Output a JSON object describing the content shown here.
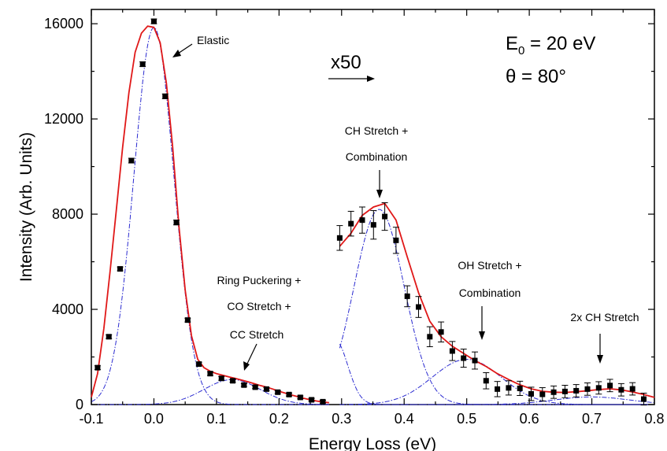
{
  "chart_data": {
    "type": "scatter",
    "xlabel": "Energy Loss (eV)",
    "ylabel": "Intensity (Arb. Units)",
    "xlim": [
      -0.1,
      0.8
    ],
    "ylim": [
      0,
      16600
    ],
    "x_ticks": [
      -0.1,
      0.0,
      0.1,
      0.2,
      0.3,
      0.4,
      0.5,
      0.6,
      0.7,
      0.8
    ],
    "x_tick_labels": [
      "-0.1",
      "0.0",
      "0.1",
      "0.2",
      "0.3",
      "0.4",
      "0.5",
      "0.6",
      "0.7",
      "0.8"
    ],
    "y_ticks": [
      0,
      4000,
      8000,
      12000,
      16000
    ],
    "y_tick_labels": [
      "0",
      "4000",
      "8000",
      "12000",
      "16000"
    ],
    "grid": false,
    "conditions": {
      "energy_main": "E",
      "energy_sub": "0",
      "energy_value": " = 20 eV",
      "angle": "θ = 80°"
    },
    "scale_marker": "x50",
    "annotations": [
      {
        "lines": [
          "Elastic"
        ]
      },
      {
        "lines": [
          "Ring Puckering +",
          "CO Stretch +",
          "CC Stretch"
        ]
      },
      {
        "lines": [
          "CH Stretch +",
          "Combination"
        ]
      },
      {
        "lines": [
          "OH Stretch +",
          "Combination"
        ]
      },
      {
        "lines": [
          "2x CH Stretch"
        ]
      }
    ],
    "measured": {
      "x": [
        -0.09,
        -0.072,
        -0.054,
        -0.036,
        -0.018,
        0.0,
        0.018,
        0.036,
        0.054,
        0.072,
        0.09,
        0.108,
        0.126,
        0.144,
        0.162,
        0.18,
        0.198,
        0.216,
        0.234,
        0.252,
        0.27,
        0.297,
        0.315,
        0.333,
        0.351,
        0.369,
        0.387,
        0.405,
        0.423,
        0.441,
        0.459,
        0.477,
        0.495,
        0.513,
        0.531,
        0.549,
        0.567,
        0.585,
        0.603,
        0.621,
        0.639,
        0.657,
        0.675,
        0.693,
        0.711,
        0.729,
        0.747,
        0.765,
        0.783
      ],
      "y": [
        1550,
        2850,
        5700,
        10250,
        14300,
        16100,
        12950,
        7650,
        3550,
        1700,
        1300,
        1100,
        1000,
        820,
        730,
        650,
        520,
        420,
        300,
        200,
        120,
        7000,
        7600,
        7750,
        7550,
        7900,
        6900,
        4550,
        4100,
        2850,
        3050,
        2250,
        1950,
        1850,
        1000,
        650,
        700,
        680,
        450,
        430,
        520,
        550,
        580,
        650,
        700,
        800,
        620,
        660,
        230
      ],
      "err": [
        80,
        80,
        80,
        100,
        100,
        100,
        100,
        100,
        80,
        80,
        80,
        80,
        60,
        60,
        60,
        60,
        60,
        60,
        60,
        60,
        60,
        520,
        520,
        550,
        600,
        580,
        550,
        440,
        440,
        420,
        420,
        400,
        380,
        360,
        340,
        320,
        300,
        300,
        280,
        280,
        260,
        260,
        260,
        260,
        260,
        260,
        260,
        260,
        250
      ]
    },
    "series": [
      {
        "name": "",
        "style": "red-solid",
        "x": [
          -0.1,
          -0.09,
          -0.08,
          -0.07,
          -0.06,
          -0.05,
          -0.04,
          -0.03,
          -0.02,
          -0.01,
          0.0,
          0.01,
          0.02,
          0.03,
          0.04,
          0.05,
          0.06,
          0.07,
          0.08,
          0.09,
          0.1,
          0.11,
          0.12,
          0.13,
          0.14,
          0.15,
          0.16,
          0.17,
          0.18,
          0.19,
          0.2,
          0.21,
          0.22,
          0.23,
          0.24,
          0.25,
          0.26,
          0.27,
          0.28
        ],
        "y": [
          310,
          1300,
          3200,
          5600,
          8200,
          10800,
          13100,
          14800,
          15600,
          15900,
          15850,
          15200,
          13500,
          10800,
          7500,
          4800,
          2900,
          1900,
          1550,
          1400,
          1300,
          1230,
          1160,
          1100,
          1030,
          960,
          880,
          800,
          730,
          650,
          560,
          480,
          400,
          330,
          260,
          200,
          150,
          110,
          80
        ]
      },
      {
        "name": "",
        "style": "red-solid",
        "x": [
          0.297,
          0.315,
          0.333,
          0.351,
          0.369,
          0.387,
          0.405,
          0.423,
          0.441,
          0.459,
          0.477,
          0.495,
          0.513,
          0.531,
          0.549,
          0.567,
          0.585,
          0.603,
          0.621,
          0.639,
          0.657,
          0.675,
          0.693,
          0.711,
          0.729,
          0.747,
          0.765,
          0.783,
          0.8
        ],
        "y": [
          6650,
          7200,
          7950,
          8300,
          8450,
          7750,
          6200,
          4700,
          3500,
          2850,
          2450,
          2150,
          1850,
          1600,
          1300,
          1050,
          830,
          660,
          560,
          520,
          510,
          540,
          580,
          630,
          660,
          620,
          530,
          420,
          300
        ]
      }
    ]
  }
}
